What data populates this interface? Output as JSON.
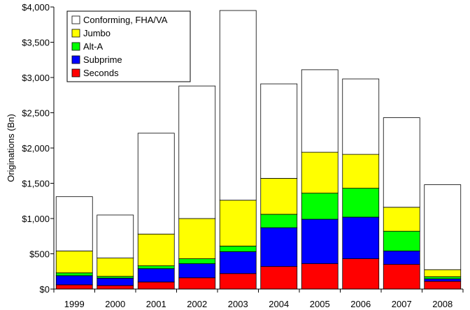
{
  "chart_data": {
    "type": "bar",
    "stacked": true,
    "title": "",
    "xlabel": "",
    "ylabel": "Originations (Bn)",
    "ylim": [
      0,
      4000
    ],
    "yticks": [
      0,
      500,
      1000,
      1500,
      2000,
      2500,
      3000,
      3500,
      4000
    ],
    "ytick_labels": [
      "$0",
      "$500",
      "$1,000",
      "$1,500",
      "$2,000",
      "$2,500",
      "$3,000",
      "$3,500",
      "$4,000"
    ],
    "grid": false,
    "legend_position": "top-left",
    "categories": [
      "1999",
      "2000",
      "2001",
      "2002",
      "2003",
      "2004",
      "2005",
      "2006",
      "2007",
      "2008"
    ],
    "series": [
      {
        "name": "Seconds",
        "color": "#ff0000",
        "values": [
          60,
          50,
          100,
          160,
          220,
          320,
          360,
          430,
          350,
          110
        ]
      },
      {
        "name": "Subprime",
        "color": "#0000ff",
        "values": [
          130,
          105,
          190,
          200,
          310,
          550,
          630,
          590,
          190,
          35
        ]
      },
      {
        "name": "Alt-A",
        "color": "#00ff00",
        "values": [
          40,
          25,
          40,
          70,
          80,
          190,
          370,
          410,
          280,
          30
        ]
      },
      {
        "name": "Jumbo",
        "color": "#ffff00",
        "values": [
          310,
          260,
          450,
          570,
          650,
          510,
          580,
          480,
          340,
          100
        ]
      },
      {
        "name": "Conforming, FHA/VA",
        "color": "#ffffff",
        "values": [
          770,
          610,
          1430,
          1880,
          2690,
          1340,
          1170,
          1070,
          1270,
          1205
        ]
      }
    ],
    "legend_order": [
      "Conforming, FHA/VA",
      "Jumbo",
      "Alt-A",
      "Subprime",
      "Seconds"
    ]
  }
}
